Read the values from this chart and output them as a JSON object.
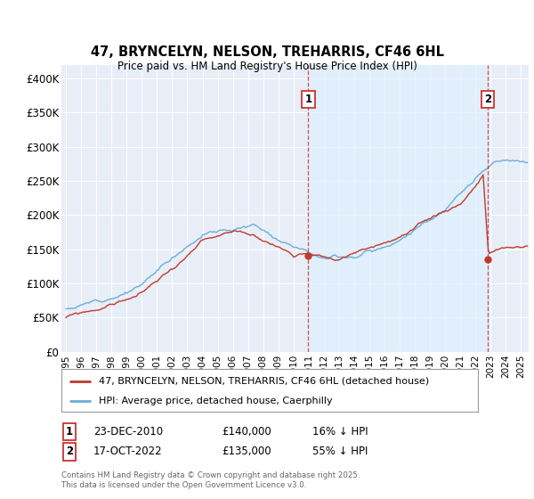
{
  "title": "47, BRYNCELYN, NELSON, TREHARRIS, CF46 6HL",
  "subtitle": "Price paid vs. HM Land Registry's House Price Index (HPI)",
  "ylabel_ticks": [
    "£0",
    "£50K",
    "£100K",
    "£150K",
    "£200K",
    "£250K",
    "£300K",
    "£350K",
    "£400K"
  ],
  "ytick_values": [
    0,
    50000,
    100000,
    150000,
    200000,
    250000,
    300000,
    350000,
    400000
  ],
  "ylim": [
    0,
    420000
  ],
  "xlim_start": 1994.7,
  "xlim_end": 2025.5,
  "hpi_color": "#6dadd6",
  "price_color": "#c0392b",
  "dashed_color": "#cc3333",
  "shade_color": "#ddeeff",
  "background_color": "#e8eef8",
  "sale1_x": 2010.98,
  "sale1_y": 140000,
  "sale2_x": 2022.8,
  "sale2_y": 135000,
  "transaction1": {
    "date": "23-DEC-2010",
    "price": "£140,000",
    "hpi_rel": "16% ↓ HPI"
  },
  "transaction2": {
    "date": "17-OCT-2022",
    "price": "£135,000",
    "hpi_rel": "55% ↓ HPI"
  },
  "legend_label1": "47, BRYNCELYN, NELSON, TREHARRIS, CF46 6HL (detached house)",
  "legend_label2": "HPI: Average price, detached house, Caerphilly",
  "footnote": "Contains HM Land Registry data © Crown copyright and database right 2025.\nThis data is licensed under the Open Government Licence v3.0.",
  "xtick_years": [
    1995,
    1996,
    1997,
    1998,
    1999,
    2000,
    2001,
    2002,
    2003,
    2004,
    2005,
    2006,
    2007,
    2008,
    2009,
    2010,
    2011,
    2012,
    2013,
    2014,
    2015,
    2016,
    2017,
    2018,
    2019,
    2020,
    2021,
    2022,
    2023,
    2024,
    2025
  ]
}
